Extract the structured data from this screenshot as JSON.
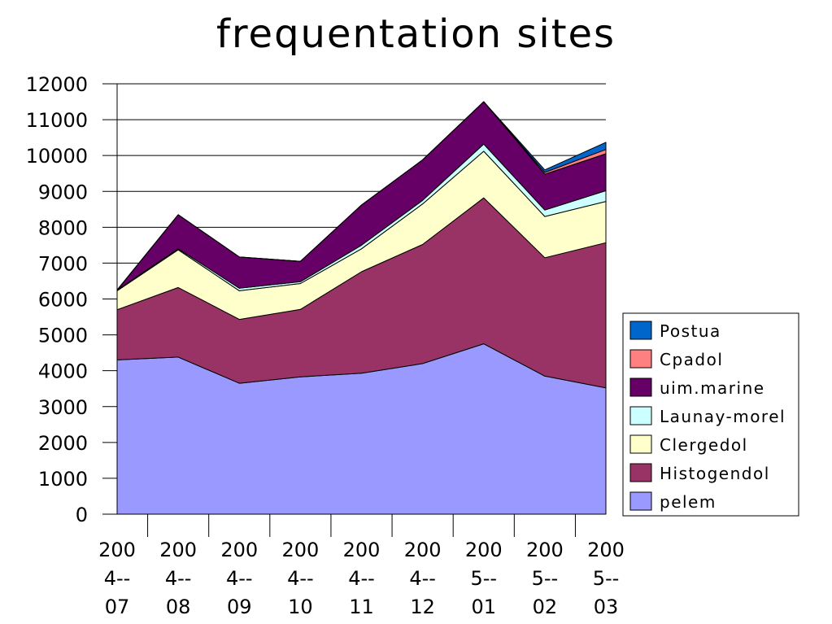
{
  "chart_data": {
    "type": "area",
    "stacked": true,
    "title": "frequentation sites",
    "xlabel": "",
    "ylabel": "",
    "ylim": [
      0,
      12000
    ],
    "yticks": [
      "0",
      "1000",
      "2000",
      "3000",
      "4000",
      "5000",
      "6000",
      "7000",
      "8000",
      "9000",
      "10000",
      "11000",
      "12000"
    ],
    "grid": "horizontal",
    "legend_position": "right",
    "categories": [
      [
        "200",
        "4--",
        "07"
      ],
      [
        "200",
        "4--",
        "08"
      ],
      [
        "200",
        "4--",
        "09"
      ],
      [
        "200",
        "4--",
        "10"
      ],
      [
        "200",
        "4--",
        "11"
      ],
      [
        "200",
        "4--",
        "12"
      ],
      [
        "200",
        "5--",
        "01"
      ],
      [
        "200",
        "5--",
        "02"
      ],
      [
        "200",
        "5--",
        "03"
      ]
    ],
    "series": [
      {
        "name": "pelem",
        "color": "#9999ff",
        "values": [
          4300,
          4380,
          3650,
          3830,
          3930,
          4200,
          4750,
          3850,
          3520
        ]
      },
      {
        "name": "Histogendol",
        "color": "#993366",
        "values": [
          1400,
          1940,
          1780,
          1880,
          2830,
          3320,
          4070,
          3300,
          4050
        ]
      },
      {
        "name": "Clergedol",
        "color": "#ffffcc",
        "values": [
          530,
          1050,
          800,
          720,
          640,
          1130,
          1300,
          1150,
          1150
        ]
      },
      {
        "name": "Launay-morel",
        "color": "#ccffff",
        "values": [
          20,
          30,
          70,
          50,
          100,
          100,
          200,
          180,
          300
        ]
      },
      {
        "name": "uim.marine",
        "color": "#660066",
        "values": [
          0,
          950,
          870,
          570,
          1120,
          1130,
          1180,
          1000,
          1030
        ]
      },
      {
        "name": "Cpadol",
        "color": "#ff8080",
        "values": [
          0,
          0,
          0,
          0,
          0,
          0,
          0,
          50,
          120
        ]
      },
      {
        "name": "Postua",
        "color": "#0066cc",
        "values": [
          0,
          0,
          0,
          0,
          0,
          0,
          0,
          70,
          200
        ]
      }
    ]
  }
}
